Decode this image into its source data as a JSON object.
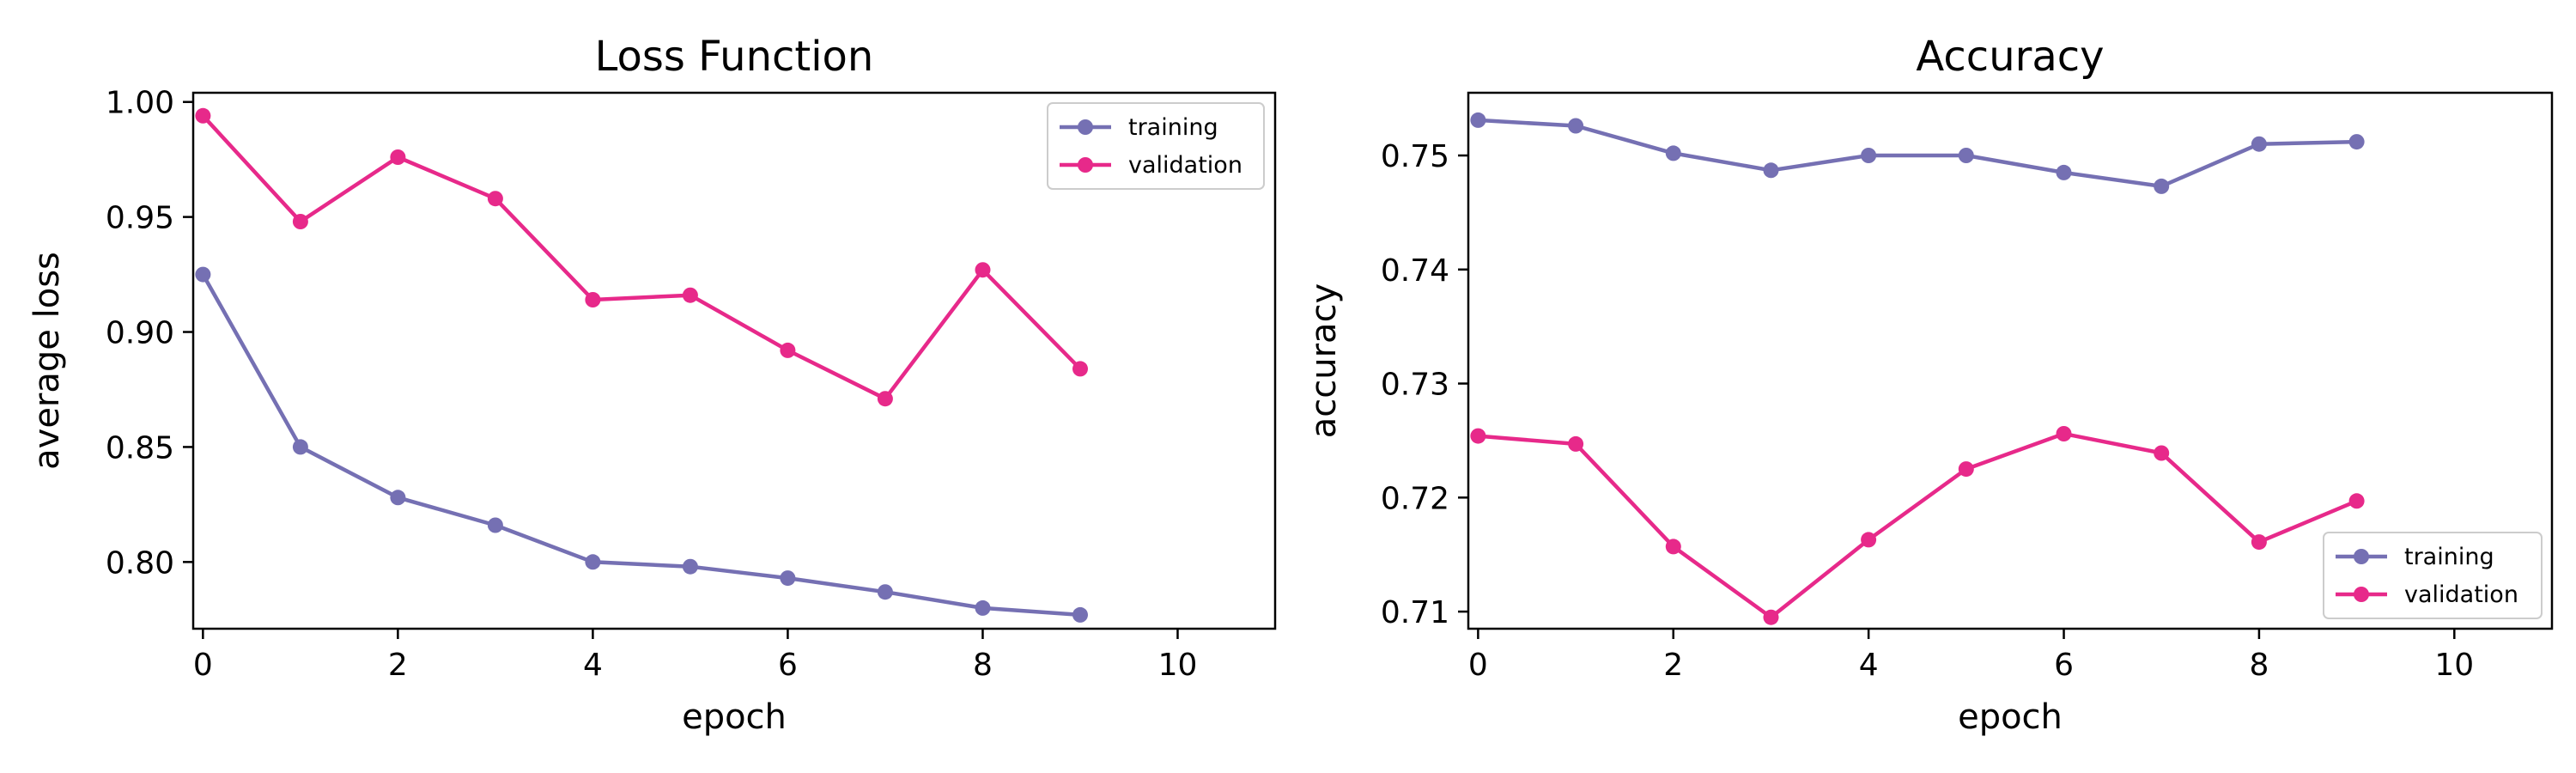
{
  "chart_data": [
    {
      "type": "line",
      "title": "Loss Function",
      "xlabel": "epoch",
      "ylabel": "average loss",
      "xlim": [
        -0.1,
        11
      ],
      "ylim": [
        0.771,
        1.004
      ],
      "x_ticks": [
        0,
        2,
        4,
        6,
        8,
        10
      ],
      "y_ticks": [
        0.8,
        0.85,
        0.9,
        0.95,
        1.0
      ],
      "y_tick_labels": [
        "0.80",
        "0.85",
        "0.90",
        "0.95",
        "1.00"
      ],
      "x": [
        0,
        1,
        2,
        3,
        4,
        5,
        6,
        7,
        8,
        9
      ],
      "series": [
        {
          "name": "training",
          "color": "#7570b3",
          "values": [
            0.925,
            0.85,
            0.828,
            0.816,
            0.8,
            0.798,
            0.793,
            0.787,
            0.78,
            0.777
          ]
        },
        {
          "name": "validation",
          "color": "#e7298a",
          "values": [
            0.994,
            0.948,
            0.976,
            0.958,
            0.914,
            0.916,
            0.892,
            0.871,
            0.927,
            0.884
          ]
        }
      ],
      "legend": "upper right",
      "grid": false
    },
    {
      "type": "line",
      "title": "Accuracy",
      "xlabel": "epoch",
      "ylabel": "accuracy",
      "xlim": [
        -0.1,
        11
      ],
      "ylim": [
        0.7085,
        0.7555
      ],
      "x_ticks": [
        0,
        2,
        4,
        6,
        8,
        10
      ],
      "y_ticks": [
        0.71,
        0.72,
        0.73,
        0.74,
        0.75
      ],
      "y_tick_labels": [
        "0.71",
        "0.72",
        "0.73",
        "0.74",
        "0.75"
      ],
      "x": [
        0,
        1,
        2,
        3,
        4,
        5,
        6,
        7,
        8,
        9
      ],
      "series": [
        {
          "name": "training",
          "color": "#7570b3",
          "values": [
            0.7531,
            0.7526,
            0.7502,
            0.7487,
            0.75,
            0.75,
            0.7485,
            0.7473,
            0.751,
            0.7512
          ]
        },
        {
          "name": "validation",
          "color": "#e7298a",
          "values": [
            0.7254,
            0.7247,
            0.7157,
            0.7095,
            0.7163,
            0.7225,
            0.7256,
            0.7239,
            0.7161,
            0.7197
          ]
        }
      ],
      "legend": "lower right",
      "grid": false
    }
  ]
}
